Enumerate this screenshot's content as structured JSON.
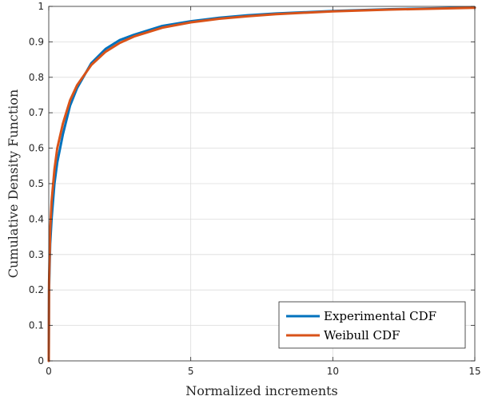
{
  "chart_data": {
    "type": "line",
    "title": "",
    "xlabel": "Normalized increments",
    "ylabel": "Cumulative Density Function",
    "xlim": [
      0,
      15
    ],
    "ylim": [
      0,
      1
    ],
    "xticks": [
      0,
      5,
      10,
      15
    ],
    "yticks": [
      0,
      0.1,
      0.2,
      0.3,
      0.4,
      0.5,
      0.6,
      0.7,
      0.8,
      0.9,
      1
    ],
    "grid": true,
    "legend_position": "bottom-right",
    "series": [
      {
        "name": "Experimental CDF",
        "color": "#0072BD",
        "x": [
          0,
          0.01,
          0.05,
          0.1,
          0.2,
          0.3,
          0.5,
          0.75,
          1,
          1.5,
          2,
          2.5,
          3,
          4,
          5,
          6,
          7,
          8,
          10,
          12,
          15
        ],
        "y": [
          0,
          0.2,
          0.33,
          0.4,
          0.5,
          0.56,
          0.64,
          0.72,
          0.77,
          0.84,
          0.88,
          0.905,
          0.92,
          0.945,
          0.958,
          0.968,
          0.975,
          0.98,
          0.987,
          0.992,
          0.997
        ]
      },
      {
        "name": "Weibull CDF",
        "color": "#D95319",
        "x": [
          0,
          0.01,
          0.05,
          0.1,
          0.2,
          0.3,
          0.5,
          0.75,
          1,
          1.5,
          2,
          2.5,
          3,
          4,
          5,
          6,
          7,
          8,
          10,
          12,
          15
        ],
        "y": [
          0,
          0.22,
          0.37,
          0.45,
          0.54,
          0.6,
          0.67,
          0.735,
          0.778,
          0.835,
          0.872,
          0.897,
          0.915,
          0.94,
          0.955,
          0.965,
          0.972,
          0.978,
          0.986,
          0.991,
          0.996
        ]
      }
    ]
  }
}
